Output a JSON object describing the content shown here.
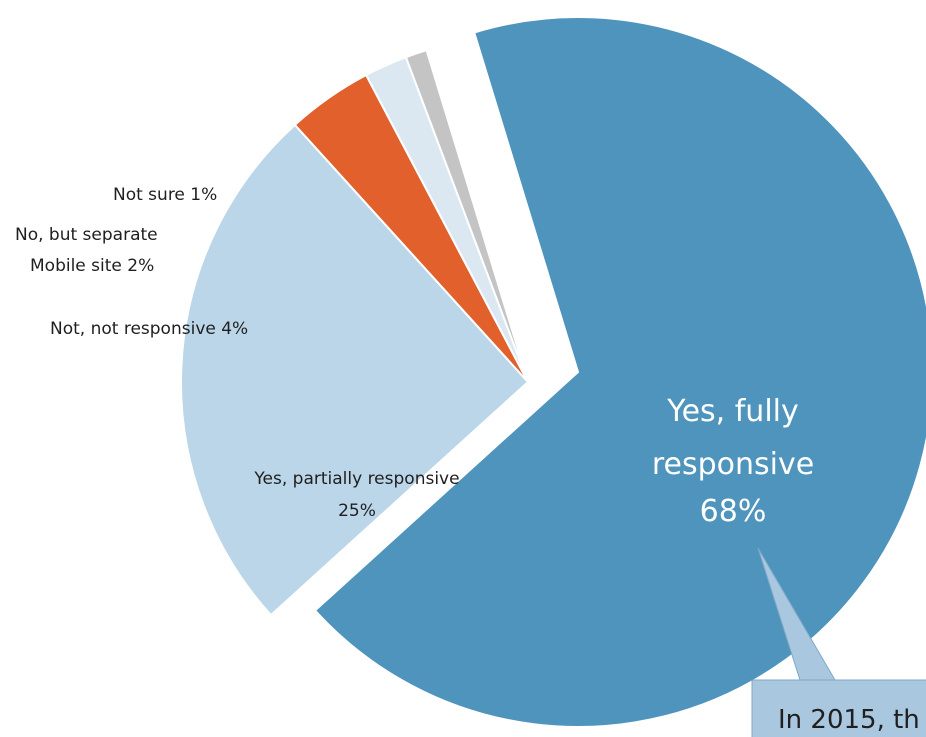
{
  "chart_data": {
    "type": "pie",
    "exploded": true,
    "slices": [
      {
        "label": "Yes, fully responsive",
        "value": 68,
        "display": "68%",
        "color": "#4f94bc"
      },
      {
        "label": "Yes, partially responsive",
        "value": 25,
        "display": "25%",
        "color": "#bad6e8"
      },
      {
        "label": "Not, not responsive",
        "value": 4,
        "display": "4%",
        "color": "#e2602c"
      },
      {
        "label": "No, but separate Mobile site",
        "value": 2,
        "display": "2%",
        "color": "#dbe8f2"
      },
      {
        "label": "Not sure",
        "value": 1,
        "display": "1%",
        "color": "#c4c4c4"
      }
    ],
    "labels": {
      "fully_line1": "Yes, fully",
      "fully_line2": "responsive",
      "fully_pct": "68%",
      "partial_line1": "Yes, partially responsive",
      "partial_pct": "25%",
      "not_responsive": "Not, not responsive 4%",
      "separate_line1": "No, but separate",
      "separate_line2": "Mobile site 2%",
      "not_sure": "Not sure 1%"
    }
  },
  "callout": {
    "text": "In 2015, th",
    "fill": "#a9c8df",
    "border": "#7fa8c6"
  }
}
